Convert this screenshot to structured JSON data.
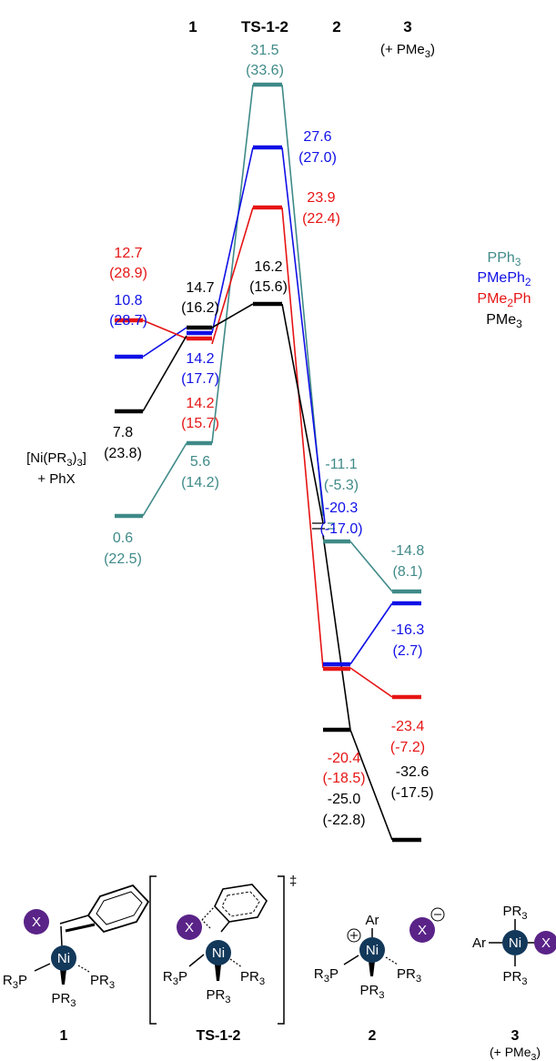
{
  "colors": {
    "PPh3": "#3f8a88",
    "PMePh2": "#1010e6",
    "PMe2Ph": "#e61414",
    "PMe3": "#000000",
    "ni": "#12385a",
    "x": "#5a2388"
  },
  "header": {
    "col1": "1",
    "colTS": "TS-1-2",
    "col2": "2",
    "col3": "3",
    "col3_note": "(+ PMe3)"
  },
  "legend": [
    "PPh3",
    "PMePh2",
    "PMe2Ph",
    "PMe3"
  ],
  "reactant": {
    "line1": "[Ni(PR3)3]",
    "line2": "+ PhX"
  },
  "energy_labels": {
    "start_pme2ph_a": "12.7",
    "start_pme2ph_b": "(28.9)",
    "start_pmeph2_a": "10.8",
    "start_pmeph2_b": "(28.7)",
    "start_pme3_a": "7.8",
    "start_pme3_b": "(23.8)",
    "start_pph3_a": "0.6",
    "start_pph3_b": "(22.5)",
    "i1_pme3_a": "14.7",
    "i1_pme3_b": "(16.2)",
    "i1_pmeph2_a": "14.2",
    "i1_pmeph2_b": "(17.7)",
    "i1_pme2ph_a": "14.2",
    "i1_pme2ph_b": "(15.7)",
    "i1_pph3_a": "5.6",
    "i1_pph3_b": "(14.2)",
    "ts_pph3_a": "31.5",
    "ts_pph3_b": "(33.6)",
    "ts_pmeph2_a": "27.6",
    "ts_pmeph2_b": "(27.0)",
    "ts_pme2ph_a": "23.9",
    "ts_pme2ph_b": "(22.4)",
    "ts_pme3_a": "16.2",
    "ts_pme3_b": "(15.6)",
    "i2_pph3_a": "-11.1",
    "i2_pph3_b": "(-5.3)",
    "i2_pmeph2_a": "-20.3",
    "i2_pmeph2_b": "(-17.0)",
    "i2_pme2ph_a": "-20.4",
    "i2_pme2ph_b": "(-18.5)",
    "i2_pme3_a": "-25.0",
    "i2_pme3_b": "(-22.8)",
    "p3_pph3_a": "-14.8",
    "p3_pph3_b": "(8.1)",
    "p3_pmeph2_a": "-16.3",
    "p3_pmeph2_b": "(2.7)",
    "p3_pme2ph_a": "-23.4",
    "p3_pme2ph_b": "(-7.2)",
    "p3_pme3_a": "-32.6",
    "p3_pme3_b": "(-17.5)"
  },
  "structures": {
    "metal": "Ni",
    "halide": "X",
    "pr3": "PR3",
    "r3p": "R3P",
    "ar": "Ar",
    "dagger": "‡",
    "labels": [
      "1",
      "TS-1-2",
      "2",
      "3"
    ],
    "label3_note": "(+ PMe3)"
  }
}
